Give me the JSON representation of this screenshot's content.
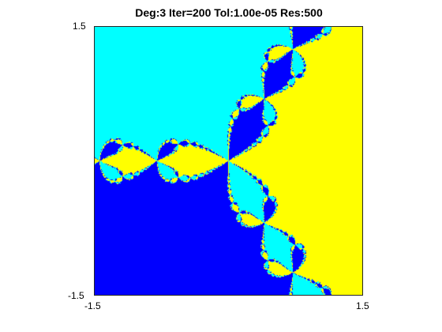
{
  "chart_data": {
    "type": "heatmap",
    "title": "Deg:3 Iter=200 Tol:1.00e-05 Res:500",
    "xlabel": "",
    "ylabel": "",
    "xlim": [
      -1.5,
      1.5
    ],
    "ylim": [
      -1.5,
      1.5
    ],
    "x_ticks": [
      "-1.5",
      "1.5"
    ],
    "y_ticks": [
      "1.5",
      "-1.5"
    ],
    "degree": 3,
    "iterations": 200,
    "tolerance": 1e-05,
    "resolution": 500,
    "roots": [
      {
        "re": 1.0,
        "im": 0.0,
        "color": "#ffff00"
      },
      {
        "re": -0.5,
        "im": 0.866,
        "color": "#00ffff"
      },
      {
        "re": -0.5,
        "im": -0.866,
        "color": "#0000ff"
      }
    ],
    "grid": false,
    "legend": "none"
  }
}
